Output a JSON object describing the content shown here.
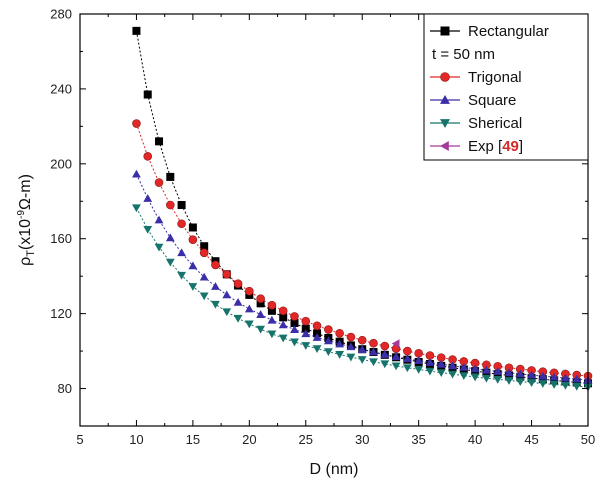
{
  "chart_data": {
    "type": "line",
    "xlabel": "D (nm)",
    "ylabel": "ρT(x10-9Ω-m)",
    "ylabel_parts": {
      "rho": "ρ",
      "sub": "T",
      "pre": "(x10",
      "sup": "-9",
      "post": "Ω-m)"
    },
    "xlim": [
      5,
      50
    ],
    "ylim": [
      60,
      280
    ],
    "xticks": [
      5,
      10,
      15,
      20,
      25,
      30,
      35,
      40,
      45,
      50
    ],
    "yticks": [
      80,
      120,
      160,
      200,
      240,
      280
    ],
    "grid": false,
    "legend_position": "top-right",
    "legend_note": "t = 50 nm",
    "x": [
      10,
      11,
      12,
      13,
      14,
      15,
      16,
      17,
      18,
      19,
      20,
      21,
      22,
      23,
      24,
      25,
      26,
      27,
      28,
      29,
      30,
      31,
      32,
      33,
      34,
      35,
      36,
      37,
      38,
      39,
      40,
      41,
      42,
      43,
      44,
      45,
      46,
      47,
      48,
      49,
      50
    ],
    "series": [
      {
        "name": "Rectangular",
        "color": "#000000",
        "marker": "square",
        "values": [
          271,
          237,
          212,
          193,
          178,
          166,
          156,
          148,
          141,
          135,
          130,
          125.5,
          121.5,
          118,
          115,
          112,
          109.5,
          107,
          105,
          103,
          101,
          99.5,
          98,
          96.7,
          95.4,
          94.2,
          93.1,
          92.1,
          91.1,
          90.2,
          89.3,
          88.5,
          87.7,
          87,
          86.3,
          85.6,
          85,
          84.4,
          83.8,
          83.3,
          82.8
        ]
      },
      {
        "name": "Trigonal",
        "color": "#e32727",
        "marker": "circle",
        "values": [
          221.5,
          204,
          190,
          178,
          168,
          159.5,
          152.5,
          146,
          141,
          136,
          132,
          128,
          124.5,
          121.5,
          118.5,
          116,
          113.5,
          111.5,
          109.5,
          107.5,
          105.8,
          104.2,
          102.7,
          101.3,
          100,
          98.8,
          97.6,
          96.5,
          95.5,
          94.5,
          93.6,
          92.7,
          91.9,
          91.1,
          90.4,
          89.7,
          89,
          88.4,
          87.8,
          87.2,
          86.7
        ]
      },
      {
        "name": "Square",
        "color": "#3b2fa8",
        "marker": "triangle-up",
        "values": [
          194.5,
          181.5,
          170,
          160.5,
          152.5,
          145.5,
          139.5,
          134.5,
          130,
          126,
          122.5,
          119.5,
          116.5,
          114,
          111.5,
          109.3,
          107.3,
          105.5,
          103.8,
          102.3,
          100.8,
          99.5,
          98.2,
          97,
          95.9,
          94.9,
          93.9,
          93,
          92.1,
          91.3,
          90.5,
          89.8,
          89.1,
          88.4,
          87.8,
          87.2,
          86.6,
          86.1,
          85.6,
          85.1,
          84.6
        ]
      },
      {
        "name": "Sherical",
        "color": "#16746b",
        "marker": "triangle-down",
        "values": [
          176.5,
          165,
          155.5,
          147.5,
          140.5,
          134.5,
          129.5,
          125,
          121,
          117.5,
          114.5,
          111.7,
          109.2,
          107,
          104.9,
          103,
          101.3,
          99.7,
          98.2,
          96.8,
          95.5,
          94.3,
          93.2,
          92.1,
          91.1,
          90.2,
          89.3,
          88.5,
          87.7,
          86.9,
          86.2,
          85.5,
          84.9,
          84.3,
          83.7,
          83.2,
          82.7,
          82.2,
          81.7,
          81.2,
          80.8
        ]
      },
      {
        "name": "Exp [49]",
        "name_parts": {
          "pre": "Exp [",
          "ref": "49",
          "post": "]"
        },
        "ref_color": "#d42a2a",
        "color": "#a43a9a",
        "marker": "triangle-left",
        "points": [
          [
            33,
            104
          ]
        ]
      }
    ]
  }
}
